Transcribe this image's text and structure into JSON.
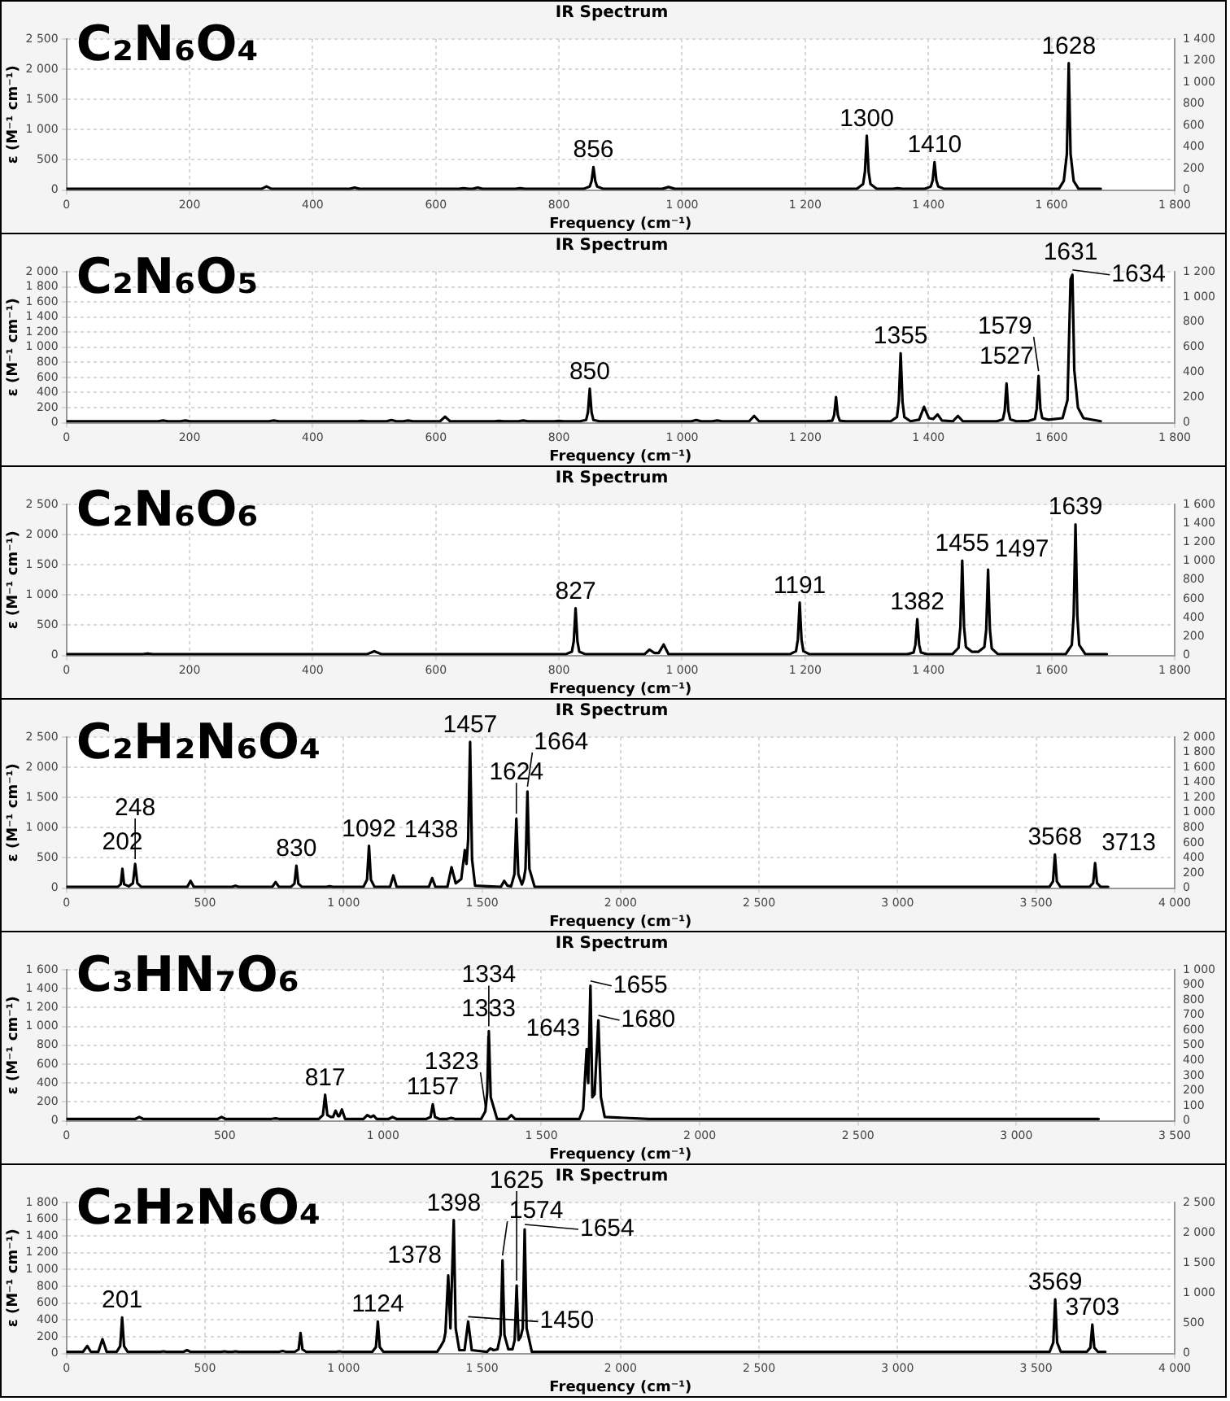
{
  "chart_data": [
    {
      "type": "line",
      "title": "IR Spectrum",
      "xlabel": "Frequency (cm⁻¹)",
      "ylabel": "ε (M⁻¹ cm⁻¹)",
      "grid": true,
      "marker": "none",
      "xlim": [
        0,
        1800
      ],
      "xticks": [
        0,
        200,
        400,
        600,
        800,
        {
          "value": 1000,
          "label": "1 000"
        },
        {
          "value": 1200,
          "label": "1 200"
        },
        {
          "value": 1400,
          "label": "1 400"
        },
        {
          "value": 1600,
          "label": "1 600"
        },
        {
          "value": 1800,
          "label": "1 800"
        }
      ],
      "ylim": [
        0,
        2500
      ],
      "yticks": [
        0,
        500,
        {
          "value": 1000,
          "label": "1 000"
        },
        {
          "value": 1500,
          "label": "1 500"
        },
        {
          "value": 2000,
          "label": "2 000"
        },
        {
          "value": 2500,
          "label": "2 500"
        }
      ],
      "y2lim": [
        0,
        1400
      ],
      "y2ticks": [
        0,
        200,
        400,
        600,
        800,
        {
          "value": 1000,
          "label": "1 000"
        },
        {
          "value": 1200,
          "label": "1 200"
        },
        {
          "value": 1400,
          "label": "1 400"
        }
      ],
      "x": [
        0,
        317,
        325,
        333,
        460,
        468,
        476,
        637,
        645,
        653,
        660,
        668,
        676,
        729,
        737,
        745,
        840,
        850,
        853,
        856,
        859,
        862,
        872,
        968,
        978,
        988,
        1284,
        1294,
        1297,
        1300,
        1303,
        1306,
        1316,
        1342,
        1350,
        1358,
        1394,
        1404,
        1407,
        1410,
        1413,
        1416,
        1426,
        1612,
        1620,
        1625,
        1628,
        1631,
        1636,
        1644,
        1680
      ],
      "series": [
        {
          "color": "#000000",
          "values": [
            20,
            20,
            60,
            20,
            20,
            40,
            20,
            20,
            30,
            20,
            20,
            40,
            20,
            20,
            30,
            20,
            20,
            60,
            150,
            380,
            150,
            60,
            20,
            20,
            50,
            20,
            20,
            100,
            300,
            900,
            300,
            100,
            20,
            20,
            30,
            20,
            20,
            60,
            160,
            460,
            160,
            60,
            20,
            20,
            150,
            600,
            2100,
            600,
            150,
            20,
            20
          ]
        }
      ],
      "annotations": [
        "C₂N₆O₄",
        {
          "text": "856",
          "x": 856,
          "y": 380
        },
        {
          "text": "1300",
          "x": 1300,
          "y": 900
        },
        {
          "text": "1410",
          "x": 1410,
          "y": 460
        },
        {
          "text": "1628",
          "x": 1628,
          "y": 2100
        }
      ]
    },
    {
      "type": "line",
      "title": "IR Spectrum",
      "xlabel": "Frequency (cm⁻¹)",
      "ylabel": "ε (M⁻¹ cm⁻¹)",
      "grid": true,
      "marker": "none",
      "xlim": [
        0,
        1800
      ],
      "xticks": [
        0,
        200,
        400,
        600,
        800,
        {
          "value": 1000,
          "label": "1 000"
        },
        {
          "value": 1200,
          "label": "1 200"
        },
        {
          "value": 1400,
          "label": "1 400"
        },
        {
          "value": 1600,
          "label": "1 600"
        },
        {
          "value": 1800,
          "label": "1 800"
        }
      ],
      "ylim": [
        0,
        2000
      ],
      "yticks": [
        0,
        200,
        400,
        600,
        800,
        {
          "value": 1000,
          "label": "1 000"
        },
        {
          "value": 1200,
          "label": "1 200"
        },
        {
          "value": 1400,
          "label": "1 400"
        },
        {
          "value": 1600,
          "label": "1 600"
        },
        {
          "value": 1800,
          "label": "1 800"
        },
        {
          "value": 2000,
          "label": "2 000"
        }
      ],
      "y2lim": [
        0,
        1200
      ],
      "y2ticks": [
        0,
        200,
        400,
        600,
        800,
        {
          "value": 1000,
          "label": "1 000"
        },
        {
          "value": 1200,
          "label": "1 200"
        }
      ],
      "x": [
        0,
        149,
        157,
        165,
        185,
        193,
        201,
        329,
        337,
        345,
        472,
        480,
        488,
        520,
        528,
        536,
        547,
        555,
        563,
        607,
        615,
        623,
        695,
        703,
        711,
        734,
        742,
        750,
        792,
        800,
        808,
        834,
        844,
        847,
        850,
        853,
        856,
        866,
        1015,
        1023,
        1031,
        1049,
        1057,
        1065,
        1109,
        1117,
        1125,
        1234,
        1244,
        1247,
        1250,
        1253,
        1256,
        1266,
        1339,
        1349,
        1352,
        1355,
        1358,
        1361,
        1371,
        1385,
        1393,
        1401,
        1408,
        1415,
        1422,
        1440,
        1448,
        1456,
        1511,
        1521,
        1524,
        1527,
        1530,
        1533,
        1543,
        1563,
        1573,
        1576,
        1579,
        1582,
        1585,
        1595,
        1618,
        1626,
        1631,
        1634,
        1637,
        1643,
        1652,
        1680
      ],
      "series": [
        {
          "color": "#000000",
          "values": [
            20,
            20,
            30,
            20,
            20,
            30,
            20,
            20,
            30,
            20,
            20,
            25,
            20,
            20,
            35,
            20,
            20,
            30,
            20,
            20,
            80,
            20,
            20,
            25,
            20,
            20,
            30,
            20,
            20,
            25,
            20,
            20,
            36,
            135,
            450,
            135,
            36,
            20,
            20,
            35,
            20,
            20,
            30,
            20,
            20,
            90,
            20,
            20,
            27,
            100,
            340,
            100,
            27,
            20,
            20,
            75,
            280,
            920,
            280,
            75,
            20,
            40,
            210,
            60,
            50,
            110,
            30,
            20,
            90,
            20,
            20,
            45,
            155,
            520,
            155,
            45,
            20,
            25,
            50,
            185,
            620,
            185,
            60,
            40,
            60,
            300,
            1900,
            1960,
            700,
            200,
            60,
            20
          ]
        }
      ],
      "annotations": [
        "C₂N₆O₅",
        {
          "text": "850",
          "x": 850,
          "y": 450
        },
        {
          "text": "1355",
          "x": 1355,
          "y": 920
        },
        {
          "text": "1527",
          "x": 1527,
          "y": 520
        },
        {
          "text": "1579",
          "x": 1579,
          "y": 620
        },
        {
          "text": "1631",
          "x": 1631,
          "y": 1900
        },
        {
          "text": "1634",
          "x": 1634,
          "y": 1960
        }
      ]
    },
    {
      "type": "line",
      "title": "IR Spectrum",
      "xlabel": "Frequency (cm⁻¹)",
      "ylabel": "ε (M⁻¹ cm⁻¹)",
      "grid": true,
      "marker": "none",
      "xlim": [
        0,
        1800
      ],
      "xticks": [
        0,
        200,
        400,
        600,
        800,
        {
          "value": 1000,
          "label": "1 000"
        },
        {
          "value": 1200,
          "label": "1 200"
        },
        {
          "value": 1400,
          "label": "1 400"
        },
        {
          "value": 1600,
          "label": "1 600"
        },
        {
          "value": 1800,
          "label": "1 800"
        }
      ],
      "ylim": [
        0,
        2500
      ],
      "yticks": [
        0,
        500,
        {
          "value": 1000,
          "label": "1 000"
        },
        {
          "value": 1500,
          "label": "1 500"
        },
        {
          "value": 2000,
          "label": "2 000"
        },
        {
          "value": 2500,
          "label": "2 500"
        }
      ],
      "y2lim": [
        0,
        1600
      ],
      "y2ticks": [
        0,
        200,
        400,
        600,
        800,
        {
          "value": 1000,
          "label": "1 000"
        },
        {
          "value": 1200,
          "label": "1 200"
        },
        {
          "value": 1400,
          "label": "1 400"
        },
        {
          "value": 1600,
          "label": "1 600"
        }
      ],
      "x": [
        0,
        124,
        132,
        140,
        488,
        500,
        512,
        811,
        821,
        824,
        827,
        830,
        833,
        843,
        939,
        947,
        955,
        962,
        970,
        978,
        1175,
        1185,
        1188,
        1191,
        1194,
        1197,
        1207,
        1366,
        1376,
        1379,
        1382,
        1385,
        1388,
        1398,
        1439,
        1449,
        1452,
        1455,
        1458,
        1461,
        1471,
        1481,
        1491,
        1494,
        1497,
        1500,
        1503,
        1513,
        1623,
        1633,
        1636,
        1639,
        1642,
        1645,
        1655,
        1690
      ],
      "series": [
        {
          "color": "#000000",
          "values": [
            20,
            20,
            30,
            20,
            20,
            70,
            20,
            20,
            62,
            234,
            780,
            234,
            62,
            20,
            20,
            95,
            40,
            40,
            180,
            20,
            20,
            70,
            262,
            875,
            262,
            70,
            20,
            20,
            48,
            180,
            600,
            180,
            48,
            20,
            20,
            126,
            471,
            1570,
            471,
            140,
            60,
            60,
            140,
            426,
            1420,
            426,
            114,
            20,
            20,
            174,
            651,
            2170,
            651,
            174,
            20,
            20
          ]
        }
      ],
      "annotations": [
        "C₂N₆O₆",
        {
          "text": "827",
          "x": 827,
          "y": 780
        },
        {
          "text": "1191",
          "x": 1191,
          "y": 875
        },
        {
          "text": "1382",
          "x": 1382,
          "y": 600
        },
        {
          "text": "1455",
          "x": 1455,
          "y": 1570
        },
        {
          "text": "1497",
          "x": 1497,
          "y": 1420
        },
        {
          "text": "1639",
          "x": 1639,
          "y": 2170
        }
      ]
    },
    {
      "type": "line",
      "title": "IR Spectrum",
      "xlabel": "Frequency (cm⁻¹)",
      "ylabel": "ε (M⁻¹ cm⁻¹)",
      "grid": true,
      "marker": "none",
      "xlim": [
        0,
        4000
      ],
      "xticks": [
        0,
        500,
        {
          "value": 1000,
          "label": "1 000"
        },
        {
          "value": 1500,
          "label": "1 500"
        },
        {
          "value": 2000,
          "label": "2 000"
        },
        {
          "value": 2500,
          "label": "2 500"
        },
        {
          "value": 3000,
          "label": "3 000"
        },
        {
          "value": 3500,
          "label": "3 500"
        },
        {
          "value": 4000,
          "label": "4 000"
        }
      ],
      "ylim": [
        0,
        2500
      ],
      "yticks": [
        0,
        500,
        {
          "value": 1000,
          "label": "1 000"
        },
        {
          "value": 1500,
          "label": "1 500"
        },
        {
          "value": 2000,
          "label": "2 000"
        },
        {
          "value": 2500,
          "label": "2 500"
        }
      ],
      "y2lim": [
        0,
        2000
      ],
      "y2ticks": [
        0,
        200,
        400,
        600,
        800,
        {
          "value": 1000,
          "label": "1 000"
        },
        {
          "value": 1200,
          "label": "1 200"
        },
        {
          "value": 1400,
          "label": "1 400"
        },
        {
          "value": 1600,
          "label": "1 600"
        },
        {
          "value": 1800,
          "label": "1 800"
        },
        {
          "value": 2000,
          "label": "2 000"
        }
      ],
      "x": [
        0,
        185,
        196,
        202,
        208,
        225,
        240,
        248,
        256,
        270,
        436,
        448,
        460,
        598,
        610,
        622,
        743,
        755,
        767,
        810,
        823,
        830,
        837,
        850,
        938,
        950,
        962,
        1072,
        1085,
        1092,
        1099,
        1112,
        1168,
        1180,
        1192,
        1308,
        1320,
        1332,
        1375,
        1390,
        1405,
        1425,
        1438,
        1444,
        1450,
        1457,
        1464,
        1475,
        1568,
        1580,
        1592,
        1605,
        1617,
        1624,
        1631,
        1644,
        1651,
        1657,
        1664,
        1671,
        1690,
        1820,
        3400,
        3548,
        3561,
        3568,
        3575,
        3588,
        3693,
        3706,
        3713,
        3720,
        3733,
        3760
      ],
      "series": [
        {
          "color": "#000000",
          "values": [
            20,
            20,
            64,
            320,
            64,
            30,
            80,
            400,
            80,
            20,
            20,
            120,
            20,
            20,
            40,
            20,
            20,
            100,
            20,
            20,
            74,
            370,
            74,
            20,
            20,
            30,
            20,
            20,
            140,
            700,
            140,
            20,
            20,
            210,
            20,
            20,
            165,
            20,
            20,
            345,
            80,
            150,
            630,
            400,
            800,
            2420,
            480,
            40,
            20,
            120,
            40,
            30,
            230,
            1150,
            230,
            60,
            150,
            320,
            1600,
            320,
            20,
            20,
            20,
            20,
            110,
            555,
            110,
            20,
            20,
            83,
            415,
            83,
            20,
            20
          ]
        }
      ],
      "annotations": [
        "C₂H₂N₆O₄",
        {
          "text": "202",
          "x": 202,
          "y": 320
        },
        {
          "text": "248",
          "x": 248,
          "y": 400
        },
        {
          "text": "830",
          "x": 830,
          "y": 370
        },
        {
          "text": "1092",
          "x": 1092,
          "y": 700
        },
        {
          "text": "1438",
          "x": 1438,
          "y": 630
        },
        {
          "text": "1457",
          "x": 1457,
          "y": 2420
        },
        {
          "text": "1624",
          "x": 1624,
          "y": 1150
        },
        {
          "text": "1664",
          "x": 1664,
          "y": 1600
        },
        {
          "text": "3568",
          "x": 3568,
          "y": 555
        },
        {
          "text": "3713",
          "x": 3713,
          "y": 415
        }
      ]
    },
    {
      "type": "line",
      "title": "IR Spectrum",
      "xlabel": "Frequency (cm⁻¹)",
      "ylabel": "ε (M⁻¹ cm⁻¹)",
      "grid": true,
      "marker": "none",
      "xlim": [
        0,
        3500
      ],
      "xticks": [
        0,
        500,
        {
          "value": 1000,
          "label": "1 000"
        },
        {
          "value": 1500,
          "label": "1 500"
        },
        {
          "value": 2000,
          "label": "2 000"
        },
        {
          "value": 2500,
          "label": "2 500"
        },
        {
          "value": 3000,
          "label": "3 000"
        },
        {
          "value": 3500,
          "label": "3 500"
        }
      ],
      "ylim": [
        0,
        1600
      ],
      "yticks": [
        0,
        200,
        400,
        600,
        800,
        {
          "value": 1000,
          "label": "1 000"
        },
        {
          "value": 1200,
          "label": "1 200"
        },
        {
          "value": 1400,
          "label": "1 400"
        },
        {
          "value": 1600,
          "label": "1 600"
        }
      ],
      "y2lim": [
        0,
        1000
      ],
      "y2ticks": [
        0,
        100,
        200,
        300,
        400,
        500,
        600,
        700,
        800,
        900,
        {
          "value": 1000,
          "label": "1 000"
        }
      ],
      "x": [
        0,
        218,
        230,
        242,
        478,
        490,
        502,
        648,
        660,
        672,
        797,
        810,
        817,
        824,
        835,
        842,
        850,
        858,
        862,
        870,
        880,
        938,
        950,
        960,
        962,
        970,
        980,
        1018,
        1030,
        1042,
        1137,
        1150,
        1157,
        1164,
        1177,
        1203,
        1215,
        1227,
        1310,
        1323,
        1329,
        1333,
        1334,
        1340,
        1360,
        1393,
        1405,
        1417,
        1620,
        1632,
        1643,
        1648,
        1655,
        1661,
        1668,
        1680,
        1688,
        1700,
        1840,
        3050,
        3260
      ],
      "series": [
        {
          "color": "#000000",
          "values": [
            20,
            20,
            40,
            20,
            20,
            40,
            20,
            20,
            25,
            20,
            20,
            60,
            275,
            60,
            40,
            40,
            107,
            50,
            50,
            120,
            20,
            20,
            60,
            40,
            40,
            55,
            20,
            20,
            40,
            20,
            20,
            40,
            175,
            40,
            20,
            20,
            30,
            20,
            20,
            100,
            300,
            900,
            950,
            250,
            20,
            20,
            60,
            20,
            20,
            120,
            760,
            400,
            1430,
            250,
            280,
            1065,
            250,
            40,
            20,
            20,
            20
          ]
        }
      ],
      "annotations": [
        "C₃HN₇O₆",
        {
          "text": "817",
          "x": 817,
          "y": 275
        },
        {
          "text": "1157",
          "x": 1157,
          "y": 175
        },
        {
          "text": "1323",
          "x": 1323,
          "y": 100
        },
        {
          "text": "1333",
          "x": 1333,
          "y": 900
        },
        {
          "text": "1334",
          "x": 1334,
          "y": 950
        },
        {
          "text": "1643",
          "x": 1643,
          "y": 760
        },
        {
          "text": "1655",
          "x": 1655,
          "y": 1430
        },
        {
          "text": "1680",
          "x": 1680,
          "y": 1065
        }
      ]
    },
    {
      "type": "line",
      "title": "IR Spectrum",
      "xlabel": "Frequency (cm⁻¹)",
      "ylabel": "ε (M⁻¹ cm⁻¹)",
      "grid": true,
      "marker": "none",
      "xlim": [
        0,
        4000
      ],
      "xticks": [
        0,
        500,
        {
          "value": 1000,
          "label": "1 000"
        },
        {
          "value": 1500,
          "label": "1 500"
        },
        {
          "value": 2000,
          "label": "2 000"
        },
        {
          "value": 2500,
          "label": "2 500"
        },
        {
          "value": 3000,
          "label": "3 000"
        },
        {
          "value": 3500,
          "label": "3 500"
        },
        {
          "value": 4000,
          "label": "4 000"
        }
      ],
      "ylim": [
        0,
        1800
      ],
      "yticks": [
        0,
        200,
        400,
        600,
        800,
        {
          "value": 1000,
          "label": "1 000"
        },
        {
          "value": 1200,
          "label": "1 200"
        },
        {
          "value": 1400,
          "label": "1 400"
        },
        {
          "value": 1600,
          "label": "1 600"
        },
        {
          "value": 1800,
          "label": "1 800"
        }
      ],
      "y2lim": [
        0,
        2500
      ],
      "y2ticks": [
        0,
        500,
        {
          "value": 1000,
          "label": "1 000"
        },
        {
          "value": 1500,
          "label": "1 500"
        },
        {
          "value": 2000,
          "label": "2 000"
        },
        {
          "value": 2500,
          "label": "2 500"
        }
      ],
      "x": [
        0,
        60,
        75,
        88,
        115,
        130,
        145,
        181,
        194,
        201,
        208,
        221,
        338,
        350,
        362,
        423,
        435,
        447,
        558,
        570,
        582,
        598,
        610,
        622,
        768,
        780,
        792,
        825,
        838,
        845,
        852,
        865,
        973,
        985,
        997,
        1104,
        1117,
        1124,
        1131,
        1144,
        1338,
        1350,
        1362,
        1368,
        1378,
        1386,
        1398,
        1405,
        1418,
        1437,
        1450,
        1463,
        1518,
        1530,
        1542,
        1556,
        1567,
        1574,
        1581,
        1595,
        1610,
        1618,
        1625,
        1632,
        1640,
        1647,
        1654,
        1661,
        1680,
        1810,
        3400,
        3549,
        3562,
        3569,
        3576,
        3589,
        3683,
        3696,
        3703,
        3710,
        3723,
        3750
      ],
      "series": [
        {
          "color": "#000000",
          "values": [
            20,
            20,
            90,
            20,
            20,
            170,
            20,
            20,
            86,
            430,
            86,
            20,
            20,
            25,
            20,
            20,
            40,
            20,
            20,
            25,
            20,
            20,
            25,
            20,
            20,
            30,
            20,
            20,
            49,
            245,
            49,
            20,
            20,
            25,
            20,
            20,
            76,
            380,
            76,
            20,
            20,
            80,
            150,
            250,
            930,
            300,
            1590,
            300,
            40,
            40,
            380,
            40,
            20,
            60,
            40,
            50,
            220,
            1110,
            220,
            50,
            50,
            160,
            810,
            160,
            200,
            300,
            1480,
            300,
            20,
            20,
            20,
            20,
            130,
            645,
            130,
            20,
            20,
            70,
            345,
            70,
            20,
            20
          ]
        }
      ],
      "annotations": [
        "C₂H₂N₆O₄",
        {
          "text": "201",
          "x": 201,
          "y": 430
        },
        {
          "text": "1124",
          "x": 1124,
          "y": 380
        },
        {
          "text": "1378",
          "x": 1378,
          "y": 930
        },
        {
          "text": "1398",
          "x": 1398,
          "y": 1590
        },
        {
          "text": "1450",
          "x": 1450,
          "y": 380
        },
        {
          "text": "1574",
          "x": 1574,
          "y": 1110
        },
        {
          "text": "1625",
          "x": 1625,
          "y": 810
        },
        {
          "text": "1654",
          "x": 1654,
          "y": 1480
        },
        {
          "text": "3569",
          "x": 3569,
          "y": 645
        },
        {
          "text": "3703",
          "x": 3703,
          "y": 345
        }
      ]
    }
  ]
}
